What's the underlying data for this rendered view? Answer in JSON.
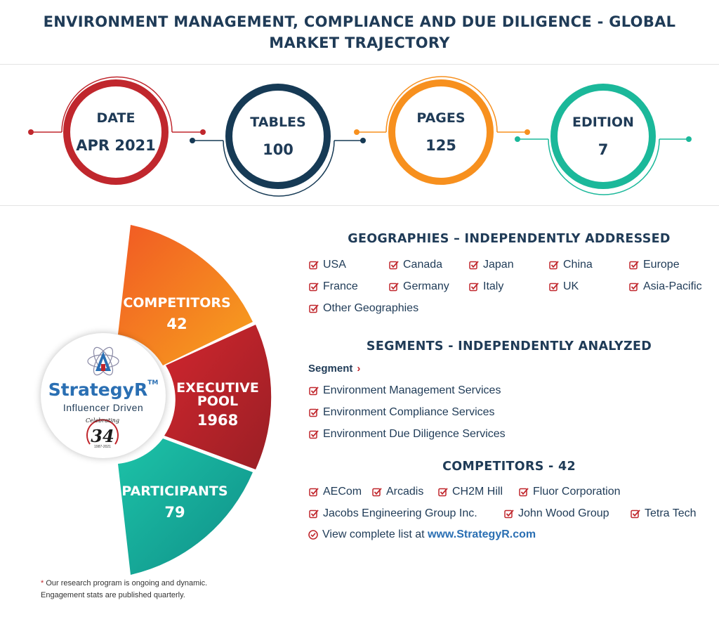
{
  "title": "ENVIRONMENT MANAGEMENT, COMPLIANCE AND DUE DILIGENCE - GLOBAL MARKET TRAJECTORY",
  "stats": [
    {
      "label": "DATE",
      "value": "APR 2021",
      "color": "#c0272d"
    },
    {
      "label": "TABLES",
      "value": "100",
      "color": "#163a55"
    },
    {
      "label": "PAGES",
      "value": "125",
      "color": "#f7901e"
    },
    {
      "label": "EDITION",
      "value": "7",
      "color": "#1bb89a"
    }
  ],
  "engagement": {
    "competitors": {
      "label": "COMPETITORS",
      "value": "42",
      "color": "#f7901e"
    },
    "executive_pool": {
      "label_line1": "EXECUTIVE",
      "label_line2": "POOL",
      "value": "1968",
      "color": "#c0272d"
    },
    "participants": {
      "label": "PARTICIPANTS",
      "value": "79",
      "color": "#1bb89a"
    }
  },
  "logo": {
    "name": "StrategyR",
    "tm": "TM",
    "tagline": "Influencer Driven",
    "celebrating_word": "Celebrating",
    "celebrating_number": "34",
    "celebrating_years": "1987-2021"
  },
  "footnote": {
    "star": "*",
    "line1": "Our research program is ongoing and dynamic.",
    "line2": "Engagement stats are published quarterly."
  },
  "geographies": {
    "title": "GEOGRAPHIES – INDEPENDENTLY ADDRESSED",
    "items": [
      "USA",
      "Canada",
      "Japan",
      "China",
      "Europe",
      "France",
      "Germany",
      "Italy",
      "UK",
      "Asia-Pacific",
      "Other Geographies"
    ]
  },
  "segments": {
    "title": "SEGMENTS - INDEPENDENTLY ANALYZED",
    "heading": "Segment",
    "arrow": "›",
    "items": [
      "Environment Management Services",
      "Environment Compliance Services",
      "Environment Due Diligence Services"
    ]
  },
  "competitors": {
    "title": "COMPETITORS - 42",
    "items": [
      "AECom",
      "Arcadis",
      "CH2M Hill",
      "Fluor Corporation",
      "Jacobs Engineering Group Inc.",
      "John Wood Group",
      "Tetra Tech"
    ],
    "view_prefix": "View complete list at",
    "view_link": "www.StrategyR.com"
  },
  "icons": {
    "check": "checkbox-check-icon",
    "view": "check-circle-icon",
    "logo": "strategyr-atom-icon",
    "badge": "celebrating-badge-icon"
  },
  "accent_red": "#c0272d"
}
